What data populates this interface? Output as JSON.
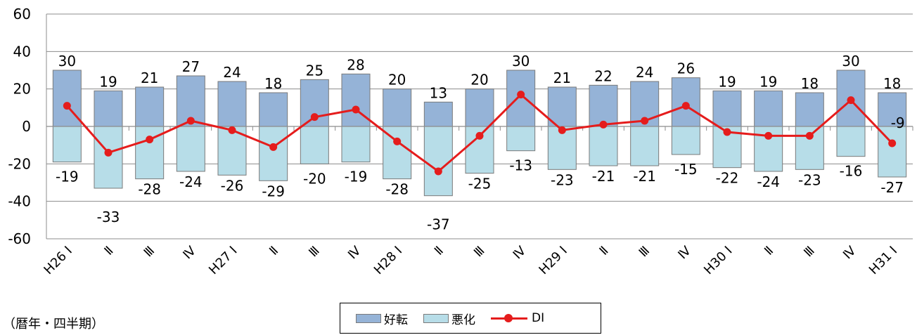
{
  "chart_data": {
    "type": "bar",
    "categories": [
      "H26 Ⅰ",
      "Ⅱ",
      "Ⅲ",
      "Ⅳ",
      "H27 Ⅰ",
      "Ⅱ",
      "Ⅲ",
      "Ⅳ",
      "H28 Ⅰ",
      "Ⅱ",
      "Ⅲ",
      "Ⅳ",
      "H29 Ⅰ",
      "Ⅱ",
      "Ⅲ",
      "Ⅳ",
      "H30 Ⅰ",
      "Ⅱ",
      "Ⅲ",
      "Ⅳ",
      "H31 Ⅰ"
    ],
    "series": [
      {
        "name": "好転",
        "type": "bar",
        "color": "#95b3d7",
        "values": [
          30,
          19,
          21,
          27,
          24,
          18,
          25,
          28,
          20,
          13,
          20,
          30,
          21,
          22,
          24,
          26,
          19,
          19,
          18,
          30,
          18
        ]
      },
      {
        "name": "悪化",
        "type": "bar",
        "color": "#b7dde8",
        "values": [
          -19,
          -33,
          -28,
          -24,
          -26,
          -29,
          -20,
          -19,
          -28,
          -37,
          -25,
          -13,
          -23,
          -21,
          -21,
          -15,
          -22,
          -24,
          -23,
          -16,
          -27
        ]
      },
      {
        "name": "DI",
        "type": "line",
        "color": "#e51c1c",
        "values": [
          11,
          -14,
          -7,
          3,
          -2,
          -11,
          5,
          9,
          -8,
          -24,
          -5,
          17,
          -2,
          1,
          3,
          11,
          -3,
          -5,
          -5,
          14,
          -9
        ]
      }
    ],
    "ylim": [
      -60,
      60
    ],
    "yticks": [
      60,
      40,
      20,
      0,
      -20,
      -40,
      -60
    ],
    "grid": true,
    "legend": "bottom-center",
    "xlabel": "",
    "ylabel": ""
  },
  "caption": "（暦年・四半期）",
  "last_di_label": "-9"
}
